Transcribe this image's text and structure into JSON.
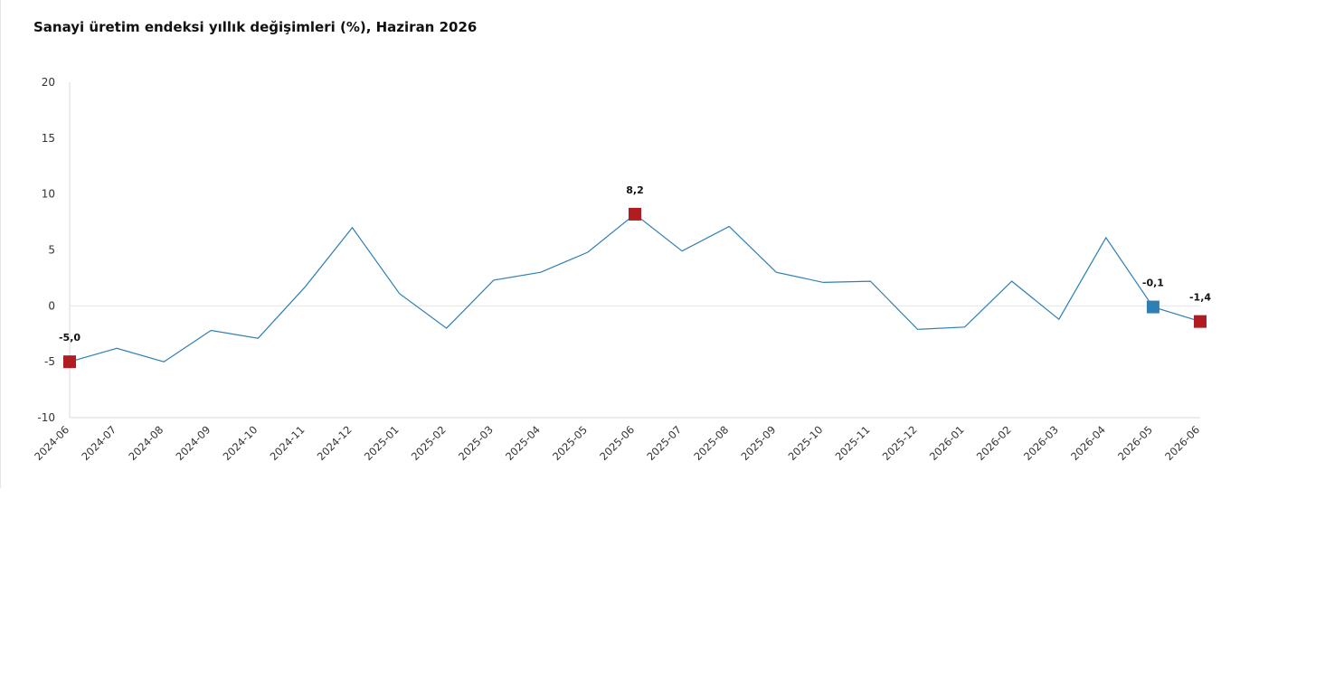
{
  "chart_data": {
    "type": "line",
    "title": "Sanayi üretim endeksi yıllık değişimleri (%), Haziran 2026",
    "xlabel": "",
    "ylabel": "",
    "ylim": [
      -10,
      20
    ],
    "yticks": [
      20,
      15,
      10,
      5,
      0,
      -5,
      -10
    ],
    "grid": false,
    "categories": [
      "2024-06",
      "2024-07",
      "2024-08",
      "2024-09",
      "2024-10",
      "2024-11",
      "2024-12",
      "2025-01",
      "2025-02",
      "2025-03",
      "2025-04",
      "2025-05",
      "2025-06",
      "2025-07",
      "2025-08",
      "2025-09",
      "2025-10",
      "2025-11",
      "2025-12",
      "2026-01",
      "2026-02",
      "2026-03",
      "2026-04",
      "2026-05",
      "2026-06"
    ],
    "series": [
      {
        "values": [
          -5.0,
          -3.8,
          -5.0,
          -2.2,
          -2.9,
          1.7,
          7.0,
          1.1,
          -2.0,
          2.3,
          3.0,
          4.8,
          8.2,
          4.9,
          7.1,
          3.0,
          2.1,
          2.2,
          -2.1,
          -1.9,
          2.2,
          -1.2,
          6.1,
          -0.1,
          -1.4
        ],
        "color": "#2f7fb5"
      }
    ],
    "highlights": [
      {
        "index": 0,
        "label": "-5,0",
        "color": "#b01c22"
      },
      {
        "index": 12,
        "label": "8,2",
        "color": "#b01c22"
      },
      {
        "index": 23,
        "label": "-0,1",
        "color": "#2f7fb5"
      },
      {
        "index": 24,
        "label": "-1,4",
        "color": "#b01c22"
      }
    ]
  }
}
